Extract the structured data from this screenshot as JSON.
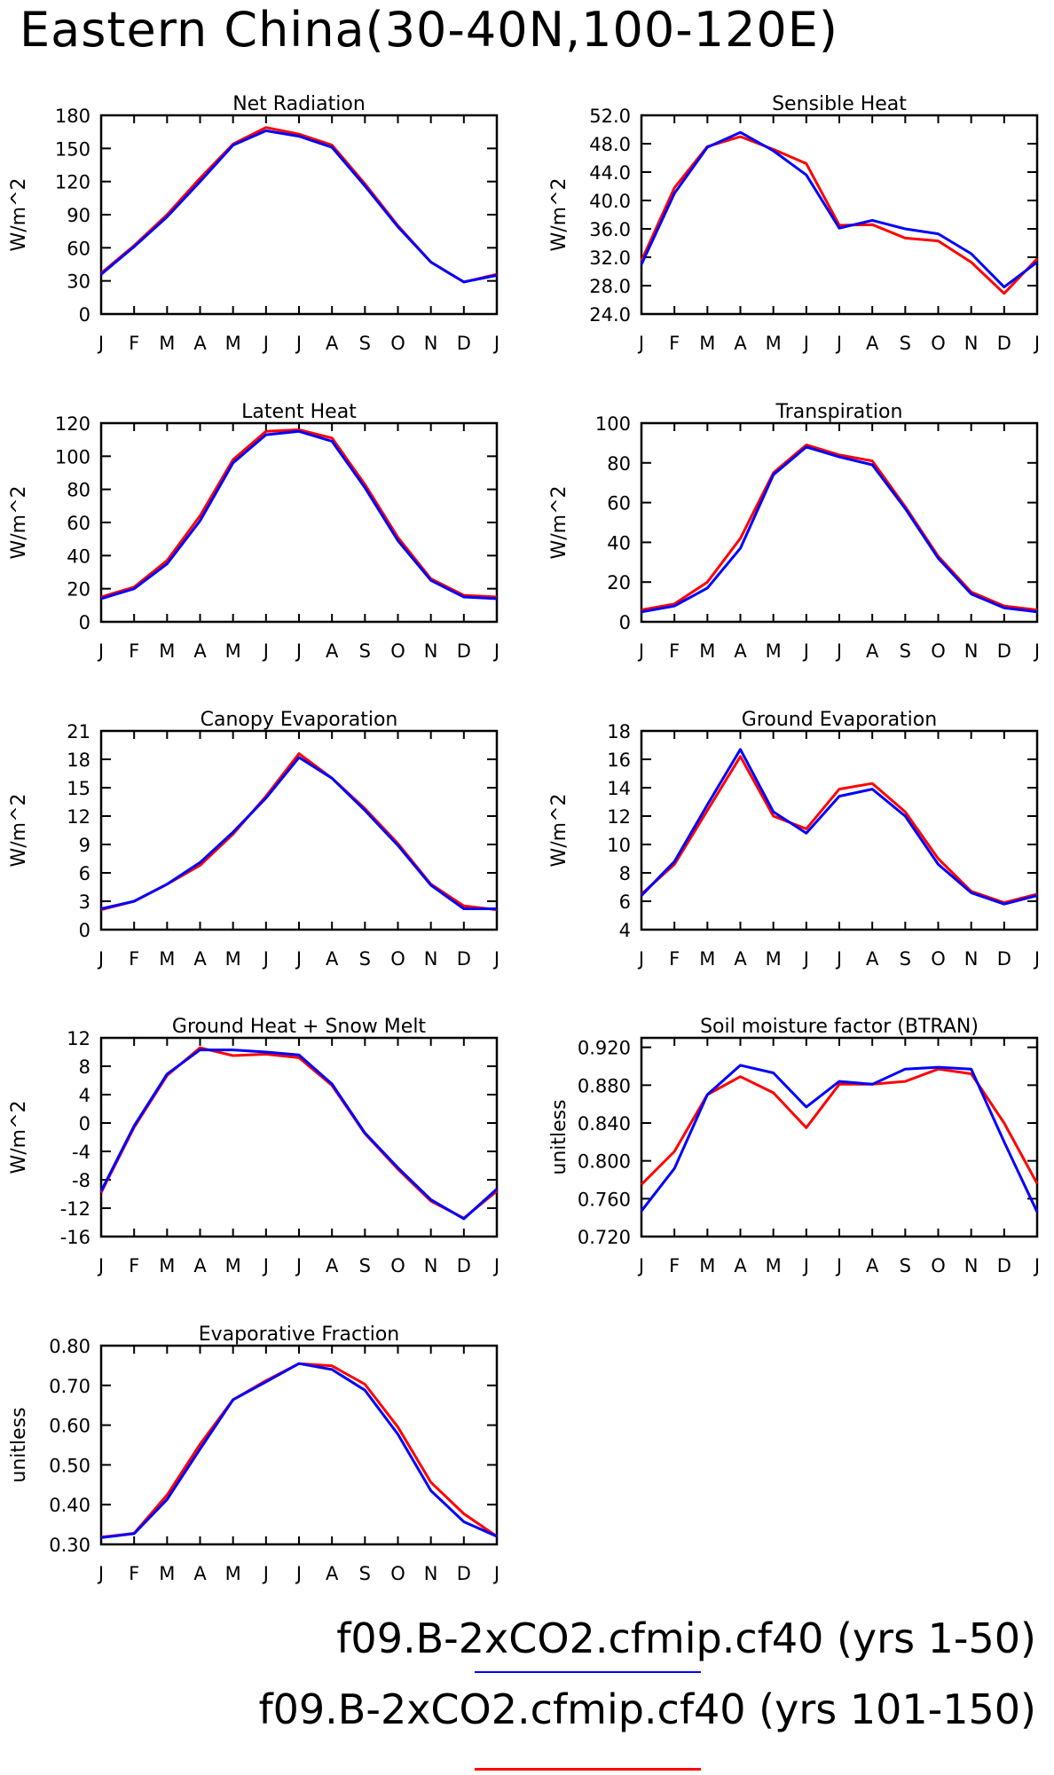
{
  "page": {
    "title": "Eastern China(30-40N,100-120E)",
    "colors": {
      "series1": "#0000ff",
      "series2": "#ff0000"
    },
    "legend": [
      {
        "label": "f09.B-2xCO2.cfmip.cf40 (yrs 1-50)",
        "color": "#0000ff"
      },
      {
        "label": "f09.B-2xCO2.cfmip.cf40 (yrs 101-150)",
        "color": "#ff0000"
      }
    ]
  },
  "chart_data": [
    {
      "type": "line",
      "title": "Net Radiation",
      "ylabel": "W/m^2",
      "categories": [
        "J",
        "F",
        "M",
        "A",
        "M",
        "J",
        "J",
        "A",
        "S",
        "O",
        "N",
        "D",
        "J"
      ],
      "ylim": [
        0,
        180
      ],
      "yticks": [
        "0",
        "30",
        "60",
        "90",
        "120",
        "150",
        "180"
      ],
      "series": [
        {
          "name": "f09.B-2xCO2.cfmip.cf40 (yrs 1-50)",
          "color": "#0000ff",
          "values": [
            36,
            61,
            88,
            120,
            153,
            166,
            161,
            151,
            116,
            79,
            47,
            29,
            35
          ]
        },
        {
          "name": "f09.B-2xCO2.cfmip.cf40 (yrs 101-150)",
          "color": "#ff0000",
          "values": [
            37,
            62,
            90,
            123,
            154,
            169,
            163,
            153,
            118,
            80,
            47,
            29,
            36
          ]
        }
      ]
    },
    {
      "type": "line",
      "title": "Sensible Heat",
      "ylabel": "W/m^2",
      "categories": [
        "J",
        "F",
        "M",
        "A",
        "M",
        "J",
        "J",
        "A",
        "S",
        "O",
        "N",
        "D",
        "J"
      ],
      "ylim": [
        24,
        52
      ],
      "yticks": [
        "24.0",
        "28.0",
        "32.0",
        "36.0",
        "40.0",
        "44.0",
        "48.0",
        "52.0"
      ],
      "series": [
        {
          "name": "f09.B-2xCO2.cfmip.cf40 (yrs 1-50)",
          "color": "#0000ff",
          "values": [
            31.0,
            41.0,
            47.5,
            49.6,
            47.0,
            43.6,
            36.1,
            37.2,
            36.0,
            35.3,
            32.5,
            27.8,
            31.3
          ]
        },
        {
          "name": "f09.B-2xCO2.cfmip.cf40 (yrs 101-150)",
          "color": "#ff0000",
          "values": [
            31.5,
            41.8,
            47.6,
            49.0,
            47.2,
            45.2,
            36.5,
            36.6,
            34.7,
            34.3,
            31.3,
            26.9,
            31.8
          ]
        }
      ]
    },
    {
      "type": "line",
      "title": "Latent Heat",
      "ylabel": "W/m^2",
      "categories": [
        "J",
        "F",
        "M",
        "A",
        "M",
        "J",
        "J",
        "A",
        "S",
        "O",
        "N",
        "D",
        "J"
      ],
      "ylim": [
        0,
        120
      ],
      "yticks": [
        "0",
        "20",
        "40",
        "60",
        "80",
        "100",
        "120"
      ],
      "series": [
        {
          "name": "f09.B-2xCO2.cfmip.cf40 (yrs 1-50)",
          "color": "#0000ff",
          "values": [
            14,
            20,
            35,
            61,
            96,
            113,
            115,
            109,
            81,
            49,
            25,
            15,
            14
          ]
        },
        {
          "name": "f09.B-2xCO2.cfmip.cf40 (yrs 101-150)",
          "color": "#ff0000",
          "values": [
            15,
            21,
            37,
            64,
            98,
            115,
            116,
            111,
            83,
            51,
            26,
            16,
            15
          ]
        }
      ]
    },
    {
      "type": "line",
      "title": "Transpiration",
      "ylabel": "W/m^2",
      "categories": [
        "J",
        "F",
        "M",
        "A",
        "M",
        "J",
        "J",
        "A",
        "S",
        "O",
        "N",
        "D",
        "J"
      ],
      "ylim": [
        0,
        100
      ],
      "yticks": [
        "0",
        "20",
        "40",
        "60",
        "80",
        "100"
      ],
      "series": [
        {
          "name": "f09.B-2xCO2.cfmip.cf40 (yrs 1-50)",
          "color": "#0000ff",
          "values": [
            5,
            8,
            17,
            37,
            74,
            88,
            83,
            79,
            57,
            32,
            14,
            7,
            5
          ]
        },
        {
          "name": "f09.B-2xCO2.cfmip.cf40 (yrs 101-150)",
          "color": "#ff0000",
          "values": [
            6,
            9,
            20,
            42,
            75,
            89,
            84,
            81,
            58,
            33,
            15,
            8,
            6
          ]
        }
      ]
    },
    {
      "type": "line",
      "title": "Canopy Evaporation",
      "ylabel": "W/m^2",
      "categories": [
        "J",
        "F",
        "M",
        "A",
        "M",
        "J",
        "J",
        "A",
        "S",
        "O",
        "N",
        "D",
        "J"
      ],
      "ylim": [
        0,
        21
      ],
      "yticks": [
        "0",
        "3",
        "6",
        "9",
        "12",
        "15",
        "18",
        "21"
      ],
      "series": [
        {
          "name": "f09.B-2xCO2.cfmip.cf40 (yrs 1-50)",
          "color": "#0000ff",
          "values": [
            2.2,
            3.0,
            4.8,
            7.1,
            10.3,
            13.9,
            18.2,
            16.0,
            12.6,
            8.9,
            4.7,
            2.2,
            2.2
          ]
        },
        {
          "name": "f09.B-2xCO2.cfmip.cf40 (yrs 101-150)",
          "color": "#ff0000",
          "values": [
            2.1,
            3.0,
            4.8,
            6.8,
            10.1,
            14.1,
            18.6,
            16.0,
            12.8,
            9.1,
            4.8,
            2.5,
            2.1
          ]
        }
      ]
    },
    {
      "type": "line",
      "title": "Ground Evaporation",
      "ylabel": "W/m^2",
      "categories": [
        "J",
        "F",
        "M",
        "A",
        "M",
        "J",
        "J",
        "A",
        "S",
        "O",
        "N",
        "D",
        "J"
      ],
      "ylim": [
        4,
        18
      ],
      "yticks": [
        "4",
        "6",
        "8",
        "10",
        "12",
        "14",
        "16",
        "18"
      ],
      "series": [
        {
          "name": "f09.B-2xCO2.cfmip.cf40 (yrs 1-50)",
          "color": "#0000ff",
          "values": [
            6.4,
            8.8,
            12.8,
            16.7,
            12.3,
            10.8,
            13.4,
            13.9,
            12.0,
            8.6,
            6.6,
            5.8,
            6.4
          ]
        },
        {
          "name": "f09.B-2xCO2.cfmip.cf40 (yrs 101-150)",
          "color": "#ff0000",
          "values": [
            6.5,
            8.6,
            12.4,
            16.2,
            12.0,
            11.1,
            13.9,
            14.3,
            12.3,
            9.0,
            6.7,
            5.9,
            6.5
          ]
        }
      ]
    },
    {
      "type": "line",
      "title": "Ground Heat + Snow Melt",
      "ylabel": "W/m^2",
      "categories": [
        "J",
        "F",
        "M",
        "A",
        "M",
        "J",
        "J",
        "A",
        "S",
        "O",
        "N",
        "D",
        "J"
      ],
      "ylim": [
        -16,
        12
      ],
      "yticks": [
        "-16",
        "-12",
        "-8",
        "-4",
        "0",
        "4",
        "8",
        "12"
      ],
      "series": [
        {
          "name": "f09.B-2xCO2.cfmip.cf40 (yrs 1-50)",
          "color": "#0000ff",
          "values": [
            -9.6,
            -0.4,
            6.9,
            10.3,
            10.3,
            10.0,
            9.6,
            5.5,
            -1.4,
            -6.3,
            -10.8,
            -13.5,
            -9.3
          ]
        },
        {
          "name": "f09.B-2xCO2.cfmip.cf40 (yrs 101-150)",
          "color": "#ff0000",
          "values": [
            -9.8,
            -0.6,
            6.7,
            10.6,
            9.5,
            9.7,
            9.2,
            5.3,
            -1.5,
            -6.5,
            -11.0,
            -13.4,
            -9.6
          ]
        }
      ]
    },
    {
      "type": "line",
      "title": "Soil moisture factor (BTRAN)",
      "ylabel": "unitless",
      "categories": [
        "J",
        "F",
        "M",
        "A",
        "M",
        "J",
        "J",
        "A",
        "S",
        "O",
        "N",
        "D",
        "J"
      ],
      "ylim": [
        0.72,
        0.93
      ],
      "yticks": [
        "0.720",
        "0.760",
        "0.800",
        "0.840",
        "0.880",
        "0.920"
      ],
      "series": [
        {
          "name": "f09.B-2xCO2.cfmip.cf40 (yrs 1-50)",
          "color": "#0000ff",
          "values": [
            0.747,
            0.792,
            0.87,
            0.901,
            0.893,
            0.857,
            0.884,
            0.881,
            0.897,
            0.899,
            0.897,
            0.82,
            0.746
          ]
        },
        {
          "name": "f09.B-2xCO2.cfmip.cf40 (yrs 101-150)",
          "color": "#ff0000",
          "values": [
            0.775,
            0.81,
            0.87,
            0.889,
            0.872,
            0.835,
            0.881,
            0.881,
            0.884,
            0.897,
            0.892,
            0.84,
            0.776
          ]
        }
      ]
    },
    {
      "type": "line",
      "title": "Evaporative Fraction",
      "ylabel": "unitless",
      "categories": [
        "J",
        "F",
        "M",
        "A",
        "M",
        "J",
        "J",
        "A",
        "S",
        "O",
        "N",
        "D",
        "J"
      ],
      "ylim": [
        0.3,
        0.8
      ],
      "yticks": [
        "0.30",
        "0.40",
        "0.50",
        "0.60",
        "0.70",
        "0.80"
      ],
      "series": [
        {
          "name": "f09.B-2xCO2.cfmip.cf40 (yrs 1-50)",
          "color": "#0000ff",
          "values": [
            0.317,
            0.327,
            0.413,
            0.54,
            0.664,
            0.709,
            0.755,
            0.74,
            0.688,
            0.577,
            0.435,
            0.357,
            0.32
          ]
        },
        {
          "name": "f09.B-2xCO2.cfmip.cf40 (yrs 101-150)",
          "color": "#ff0000",
          "values": [
            0.318,
            0.328,
            0.424,
            0.552,
            0.664,
            0.712,
            0.755,
            0.749,
            0.703,
            0.595,
            0.456,
            0.377,
            0.32
          ]
        }
      ]
    }
  ]
}
